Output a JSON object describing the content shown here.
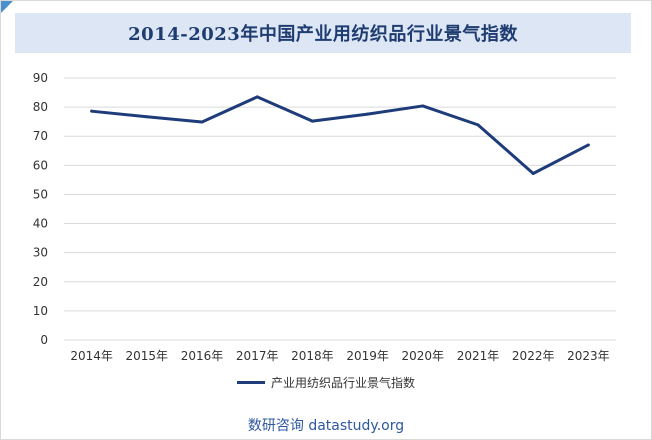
{
  "chart_data": {
    "type": "line",
    "title": "2014-2023年中国产业用纺织品行业景气指数",
    "categories": [
      "2014年",
      "2015年",
      "2016年",
      "2017年",
      "2018年",
      "2019年",
      "2020年",
      "2021年",
      "2022年",
      "2023年"
    ],
    "series": [
      {
        "name": "产业用纺织品行业景气指数",
        "values": [
          78.6,
          76.7,
          74.9,
          83.5,
          75.2,
          77.6,
          80.4,
          73.9,
          57.2,
          67.0
        ],
        "color": "#1f3c7a"
      }
    ],
    "ylim": [
      0,
      90
    ],
    "yticks": [
      0,
      10,
      20,
      30,
      40,
      50,
      60,
      70,
      80,
      90
    ],
    "grid": true,
    "legend": "bottom"
  },
  "source": "数研咨询 datastudy.org",
  "colors": {
    "title_bg": "#dce6f5",
    "title_text": "#1f3c70",
    "line": "#1f3c7a",
    "grid": "#d9d9d9",
    "source_text": "#2e58a0"
  }
}
